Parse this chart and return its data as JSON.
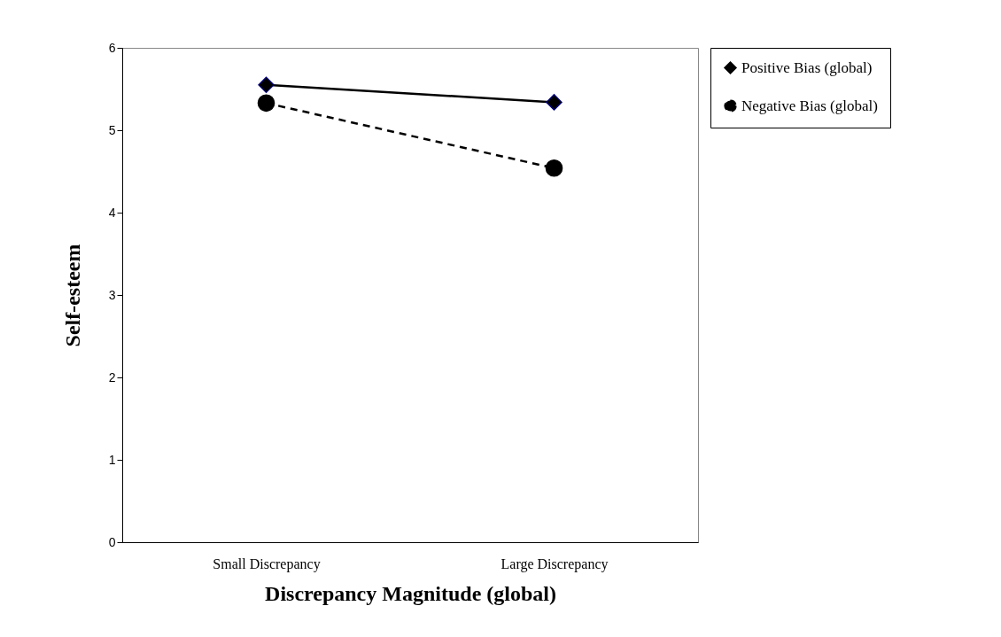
{
  "chart_data": {
    "type": "line",
    "xlabel": "Discrepancy Magnitude (global)",
    "ylabel": "Self-esteem",
    "categories": [
      "Small Discrepancy",
      "Large Discrepancy"
    ],
    "series": [
      {
        "name": "Positive Bias (global)",
        "color": "#000000",
        "values": [
          5.55,
          5.34
        ],
        "marker": "diamond",
        "line_style": "solid"
      },
      {
        "name": "Negative Bias (global)",
        "color": "#000000",
        "values": [
          5.33,
          4.54
        ],
        "marker": "circle",
        "line_style": "dashed"
      }
    ],
    "ylim": [
      0,
      6
    ],
    "yticks": [
      0,
      1,
      2,
      3,
      4,
      5,
      6
    ],
    "grid": false,
    "legend": "right"
  }
}
